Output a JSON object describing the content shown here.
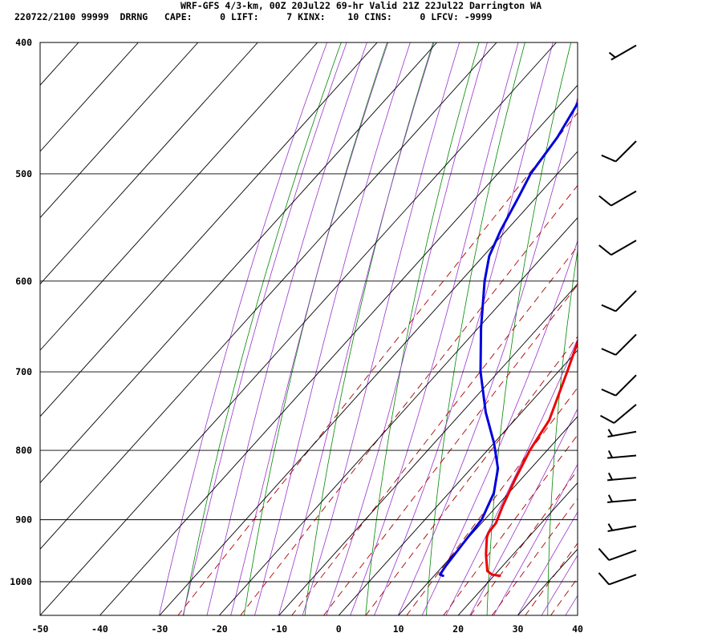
{
  "header": {
    "title": "WRF-GFS 4/3-km, 00Z 20Jul22 69-hr Valid 21Z 22Jul22 Darrington WA",
    "info": "220722/2100 99999  DRRNG   CAPE:     0 LIFT:     7 KINX:    10 CINS:     0 LFCV: -9999"
  },
  "chart_data": {
    "type": "line",
    "subtype": "skew-T log-p sounding",
    "xlabel": "",
    "ylabel": "",
    "xlim": [
      -50,
      40
    ],
    "ylim": [
      1050,
      400
    ],
    "y_scale": "log (pressure, inverted)",
    "x_ticks": [
      "-50",
      "-40",
      "-30",
      "-20",
      "-10",
      "0",
      "10",
      "20",
      "30",
      "40"
    ],
    "y_ticks": [
      "400",
      "500",
      "600",
      "700",
      "800",
      "900",
      "1000"
    ],
    "grid": true,
    "colors": {
      "temperature": "#ee0000",
      "dewpoint": "#0000dd",
      "isotherm": "#000000",
      "dry_adiabat": "#008800",
      "moist_adiabat": "#9933cc",
      "mixing_ratio": "#aa0000"
    },
    "series": [
      {
        "key": "temperature",
        "color": "#ee0000",
        "points": [
          [
            990,
            21.0
          ],
          [
            988,
            19.5
          ],
          [
            982,
            18.2
          ],
          [
            955,
            15.5
          ],
          [
            927,
            13.0
          ],
          [
            920,
            12.6
          ],
          [
            905,
            12.4
          ],
          [
            880,
            11.0
          ],
          [
            840,
            9.0
          ],
          [
            800,
            7.1
          ],
          [
            760,
            5.8
          ],
          [
            700,
            1.5
          ],
          [
            650,
            -2.5
          ],
          [
            600,
            -6.5
          ],
          [
            550,
            -11.0
          ],
          [
            500,
            -16.0
          ],
          [
            450,
            -21.5
          ],
          [
            405,
            -26.0
          ]
        ]
      },
      {
        "key": "dewpoint",
        "color": "#0000dd",
        "points": [
          [
            990,
            11.5
          ],
          [
            988,
            10.8
          ],
          [
            975,
            10.5
          ],
          [
            940,
            10.0
          ],
          [
            900,
            9.5
          ],
          [
            860,
            7.5
          ],
          [
            825,
            4.5
          ],
          [
            790,
            0.0
          ],
          [
            750,
            -6.0
          ],
          [
            700,
            -13.0
          ],
          [
            650,
            -19.5
          ],
          [
            600,
            -26.0
          ],
          [
            575,
            -29.0
          ],
          [
            550,
            -31.0
          ],
          [
            520,
            -33.0
          ],
          [
            500,
            -34.5
          ],
          [
            470,
            -35.5
          ],
          [
            440,
            -37.5
          ],
          [
            405,
            -39.5
          ]
        ]
      }
    ],
    "wind_barbs": [
      {
        "p": 402,
        "dir": 240,
        "spd": 5
      },
      {
        "p": 473,
        "dir": 225,
        "spd": 10
      },
      {
        "p": 515,
        "dir": 240,
        "spd": 10
      },
      {
        "p": 560,
        "dir": 240,
        "spd": 10
      },
      {
        "p": 610,
        "dir": 225,
        "spd": 10
      },
      {
        "p": 657,
        "dir": 225,
        "spd": 10
      },
      {
        "p": 704,
        "dir": 225,
        "spd": 10
      },
      {
        "p": 740,
        "dir": 230,
        "spd": 10
      },
      {
        "p": 775,
        "dir": 260,
        "spd": 5
      },
      {
        "p": 807,
        "dir": 265,
        "spd": 5
      },
      {
        "p": 838,
        "dir": 265,
        "spd": 5
      },
      {
        "p": 870,
        "dir": 265,
        "spd": 5
      },
      {
        "p": 910,
        "dir": 260,
        "spd": 5
      },
      {
        "p": 948,
        "dir": 250,
        "spd": 10
      },
      {
        "p": 988,
        "dir": 250,
        "spd": 10
      }
    ]
  }
}
